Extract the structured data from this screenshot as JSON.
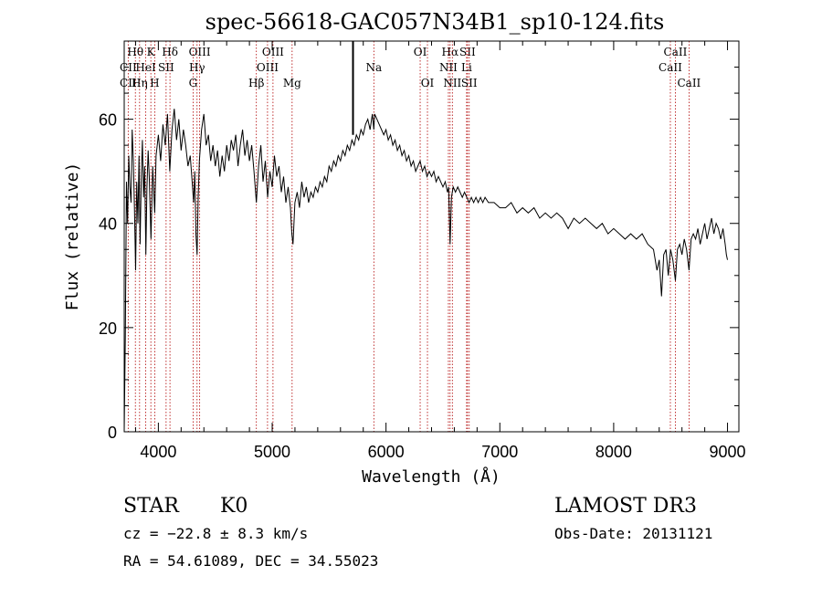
{
  "chart_data": {
    "type": "line",
    "title": "spec-56618-GAC057N34B1_sp10-124.fits",
    "xlabel": "Wavelength (Å)",
    "ylabel": "Flux (relative)",
    "xlim": [
      3700,
      9100
    ],
    "ylim": [
      0,
      75
    ],
    "x_ticks": [
      4000,
      5000,
      6000,
      7000,
      8000,
      9000
    ],
    "y_ticks": [
      0,
      20,
      40,
      60
    ],
    "x_tick_labels": [
      "4000",
      "5000",
      "6000",
      "7000",
      "8000",
      "9000"
    ],
    "y_tick_labels": [
      "0",
      "20",
      "40",
      "60"
    ],
    "grid": false,
    "series": [
      {
        "points": [
          [
            3700,
            0
          ],
          [
            3710,
            18
          ],
          [
            3720,
            48
          ],
          [
            3730,
            40
          ],
          [
            3740,
            53
          ],
          [
            3750,
            47
          ],
          [
            3760,
            44
          ],
          [
            3770,
            58
          ],
          [
            3780,
            52
          ],
          [
            3790,
            43
          ],
          [
            3800,
            31
          ],
          [
            3810,
            48
          ],
          [
            3820,
            40
          ],
          [
            3830,
            53
          ],
          [
            3840,
            36
          ],
          [
            3850,
            49
          ],
          [
            3860,
            56
          ],
          [
            3870,
            45
          ],
          [
            3880,
            51
          ],
          [
            3890,
            34
          ],
          [
            3900,
            47
          ],
          [
            3910,
            54
          ],
          [
            3920,
            49
          ],
          [
            3935,
            37
          ],
          [
            3950,
            51
          ],
          [
            3968,
            42
          ],
          [
            3980,
            53
          ],
          [
            4000,
            57
          ],
          [
            4020,
            52
          ],
          [
            4040,
            59
          ],
          [
            4060,
            55
          ],
          [
            4080,
            61
          ],
          [
            4100,
            50
          ],
          [
            4120,
            58
          ],
          [
            4140,
            62
          ],
          [
            4160,
            56
          ],
          [
            4180,
            60
          ],
          [
            4200,
            54
          ],
          [
            4220,
            58
          ],
          [
            4240,
            55
          ],
          [
            4260,
            51
          ],
          [
            4280,
            53
          ],
          [
            4300,
            47
          ],
          [
            4310,
            44
          ],
          [
            4320,
            50
          ],
          [
            4330,
            38
          ],
          [
            4340,
            34
          ],
          [
            4350,
            45
          ],
          [
            4360,
            52
          ],
          [
            4380,
            58
          ],
          [
            4400,
            61
          ],
          [
            4420,
            55
          ],
          [
            4440,
            57
          ],
          [
            4460,
            52
          ],
          [
            4480,
            55
          ],
          [
            4500,
            51
          ],
          [
            4520,
            54
          ],
          [
            4540,
            49
          ],
          [
            4560,
            53
          ],
          [
            4580,
            50
          ],
          [
            4600,
            55
          ],
          [
            4620,
            52
          ],
          [
            4640,
            56
          ],
          [
            4660,
            54
          ],
          [
            4680,
            57
          ],
          [
            4700,
            51
          ],
          [
            4720,
            55
          ],
          [
            4740,
            58
          ],
          [
            4760,
            53
          ],
          [
            4780,
            56
          ],
          [
            4800,
            52
          ],
          [
            4820,
            55
          ],
          [
            4840,
            50
          ],
          [
            4861,
            44
          ],
          [
            4880,
            51
          ],
          [
            4900,
            55
          ],
          [
            4920,
            48
          ],
          [
            4940,
            52
          ],
          [
            4960,
            45
          ],
          [
            4980,
            50
          ],
          [
            5000,
            47
          ],
          [
            5020,
            53
          ],
          [
            5040,
            49
          ],
          [
            5060,
            51
          ],
          [
            5080,
            46
          ],
          [
            5100,
            49
          ],
          [
            5120,
            44
          ],
          [
            5140,
            47
          ],
          [
            5160,
            43
          ],
          [
            5172,
            38
          ],
          [
            5183,
            36
          ],
          [
            5200,
            44
          ],
          [
            5220,
            46
          ],
          [
            5240,
            43
          ],
          [
            5260,
            48
          ],
          [
            5280,
            45
          ],
          [
            5300,
            47
          ],
          [
            5320,
            44
          ],
          [
            5340,
            46
          ],
          [
            5360,
            45
          ],
          [
            5380,
            47
          ],
          [
            5400,
            46
          ],
          [
            5420,
            48
          ],
          [
            5440,
            47
          ],
          [
            5460,
            49
          ],
          [
            5480,
            48
          ],
          [
            5500,
            51
          ],
          [
            5520,
            50
          ],
          [
            5540,
            52
          ],
          [
            5560,
            51
          ],
          [
            5580,
            53
          ],
          [
            5600,
            52
          ],
          [
            5620,
            54
          ],
          [
            5640,
            53
          ],
          [
            5660,
            55
          ],
          [
            5680,
            54
          ],
          [
            5700,
            56
          ],
          [
            5720,
            55
          ],
          [
            5740,
            57
          ],
          [
            5760,
            56
          ],
          [
            5780,
            58
          ],
          [
            5800,
            57
          ],
          [
            5820,
            59
          ],
          [
            5840,
            60
          ],
          [
            5860,
            58
          ],
          [
            5880,
            61
          ],
          [
            5893,
            58
          ],
          [
            5900,
            61
          ],
          [
            5920,
            60
          ],
          [
            5940,
            59
          ],
          [
            5960,
            58
          ],
          [
            5980,
            57
          ],
          [
            6000,
            58
          ],
          [
            6020,
            56
          ],
          [
            6040,
            57
          ],
          [
            6060,
            55
          ],
          [
            6080,
            56
          ],
          [
            6100,
            54
          ],
          [
            6120,
            55
          ],
          [
            6140,
            53
          ],
          [
            6160,
            54
          ],
          [
            6180,
            52
          ],
          [
            6200,
            53
          ],
          [
            6220,
            51
          ],
          [
            6240,
            52
          ],
          [
            6260,
            50
          ],
          [
            6280,
            51
          ],
          [
            6300,
            52
          ],
          [
            6320,
            50
          ],
          [
            6340,
            51
          ],
          [
            6360,
            49
          ],
          [
            6380,
            50
          ],
          [
            6400,
            49
          ],
          [
            6420,
            50
          ],
          [
            6440,
            48
          ],
          [
            6460,
            49
          ],
          [
            6480,
            48
          ],
          [
            6500,
            47
          ],
          [
            6520,
            48
          ],
          [
            6540,
            46
          ],
          [
            6550,
            47
          ],
          [
            6563,
            36
          ],
          [
            6575,
            45
          ],
          [
            6590,
            47
          ],
          [
            6610,
            46
          ],
          [
            6630,
            47
          ],
          [
            6650,
            46
          ],
          [
            6670,
            45
          ],
          [
            6690,
            46
          ],
          [
            6710,
            45
          ],
          [
            6730,
            44
          ],
          [
            6750,
            45
          ],
          [
            6770,
            44
          ],
          [
            6790,
            45
          ],
          [
            6810,
            44
          ],
          [
            6830,
            45
          ],
          [
            6850,
            44
          ],
          [
            6870,
            45
          ],
          [
            6900,
            44
          ],
          [
            6950,
            44
          ],
          [
            7000,
            43
          ],
          [
            7050,
            43
          ],
          [
            7100,
            44
          ],
          [
            7150,
            42
          ],
          [
            7200,
            43
          ],
          [
            7250,
            42
          ],
          [
            7300,
            43
          ],
          [
            7350,
            41
          ],
          [
            7400,
            42
          ],
          [
            7450,
            41
          ],
          [
            7500,
            42
          ],
          [
            7550,
            41
          ],
          [
            7600,
            39
          ],
          [
            7650,
            41
          ],
          [
            7700,
            40
          ],
          [
            7750,
            41
          ],
          [
            7800,
            40
          ],
          [
            7850,
            39
          ],
          [
            7900,
            40
          ],
          [
            7950,
            38
          ],
          [
            8000,
            39
          ],
          [
            8050,
            38
          ],
          [
            8100,
            37
          ],
          [
            8150,
            38
          ],
          [
            8200,
            37
          ],
          [
            8250,
            38
          ],
          [
            8300,
            36
          ],
          [
            8350,
            35
          ],
          [
            8380,
            31
          ],
          [
            8400,
            33
          ],
          [
            8420,
            26
          ],
          [
            8440,
            34
          ],
          [
            8460,
            35
          ],
          [
            8480,
            30
          ],
          [
            8500,
            35
          ],
          [
            8520,
            33
          ],
          [
            8542,
            29
          ],
          [
            8560,
            35
          ],
          [
            8580,
            36
          ],
          [
            8600,
            34
          ],
          [
            8620,
            37
          ],
          [
            8640,
            35
          ],
          [
            8662,
            31
          ],
          [
            8680,
            37
          ],
          [
            8700,
            38
          ],
          [
            8720,
            37
          ],
          [
            8740,
            39
          ],
          [
            8760,
            36
          ],
          [
            8780,
            38
          ],
          [
            8800,
            40
          ],
          [
            8820,
            37
          ],
          [
            8840,
            39
          ],
          [
            8860,
            41
          ],
          [
            8880,
            38
          ],
          [
            8900,
            40
          ],
          [
            8920,
            39
          ],
          [
            8940,
            37
          ],
          [
            8960,
            39
          ],
          [
            8980,
            36
          ],
          [
            8990,
            34
          ],
          [
            9000,
            33
          ]
        ]
      }
    ],
    "spike": {
      "x": 5710,
      "y_from": 57,
      "y_to": 75
    },
    "line_markers": [
      {
        "label": "Hθ",
        "wave": 3798,
        "row": 1
      },
      {
        "label": "CII",
        "wave": 3735,
        "row": 2
      },
      {
        "label": "CII",
        "wave": 3735,
        "row": 3
      },
      {
        "label": "K",
        "wave": 3934,
        "row": 1
      },
      {
        "label": "HeI",
        "wave": 3889,
        "row": 2
      },
      {
        "label": "Hη",
        "wave": 3835,
        "row": 3
      },
      {
        "label": "Hδ",
        "wave": 4102,
        "row": 1
      },
      {
        "label": "SII",
        "wave": 4068,
        "row": 2
      },
      {
        "label": "H",
        "wave": 3968,
        "row": 3
      },
      {
        "label": "OIII",
        "wave": 4363,
        "row": 1
      },
      {
        "label": "Hγ",
        "wave": 4340,
        "row": 2
      },
      {
        "label": "G",
        "wave": 4305,
        "row": 3
      },
      {
        "label": "OIII",
        "wave": 5007,
        "row": 1
      },
      {
        "label": "OIII",
        "wave": 4959,
        "row": 2
      },
      {
        "label": "Hβ",
        "wave": 4861,
        "row": 3
      },
      {
        "label": "Mg",
        "wave": 5175,
        "row": 3
      },
      {
        "label": "Na",
        "wave": 5893,
        "row": 2
      },
      {
        "label": "OI",
        "wave": 6300,
        "row": 1
      },
      {
        "label": "OI",
        "wave": 6364,
        "row": 3
      },
      {
        "label": "Hα",
        "wave": 6563,
        "row": 1
      },
      {
        "label": "SII",
        "wave": 6716,
        "row": 1
      },
      {
        "label": "NII",
        "wave": 6548,
        "row": 2
      },
      {
        "label": "Li",
        "wave": 6708,
        "row": 2
      },
      {
        "label": "NII",
        "wave": 6583,
        "row": 3
      },
      {
        "label": "SII",
        "wave": 6731,
        "row": 3
      },
      {
        "label": "CaII",
        "wave": 8542,
        "row": 1
      },
      {
        "label": "CaII",
        "wave": 8498,
        "row": 2
      },
      {
        "label": "CaII",
        "wave": 8662,
        "row": 3
      }
    ],
    "colors": {
      "line": "#000000",
      "marker": "#b00000",
      "axis": "#000000"
    }
  },
  "info": {
    "class": "STAR",
    "subclass": "K0",
    "survey": "LAMOST DR3",
    "cz": "cz = −22.8 ± 8.3 km/s",
    "obs_date": "Obs-Date: 20131121",
    "coords": "RA =  54.61089, DEC =  34.55023"
  }
}
